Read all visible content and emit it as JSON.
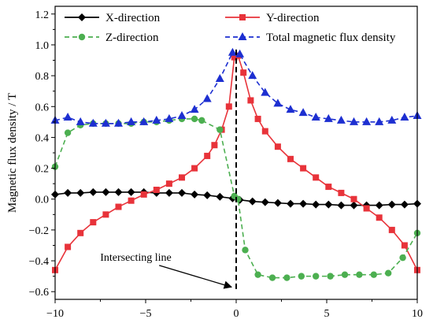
{
  "chart_data": {
    "type": "line",
    "title": "",
    "xlabel": "",
    "ylabel": "Magnetic flux density / T",
    "xlim": [
      -10,
      10
    ],
    "ylim": [
      -0.65,
      1.25
    ],
    "xticks": [
      -10,
      -5,
      0,
      5,
      10
    ],
    "xtick_labels": [
      "−10",
      "−5",
      "0",
      "5",
      "10"
    ],
    "yticks": [
      -0.6,
      -0.4,
      -0.2,
      0.0,
      0.2,
      0.4,
      0.6,
      0.8,
      1.0,
      1.2
    ],
    "ytick_labels": [
      "−0.6",
      "−0.4",
      "−0.2",
      "0.0",
      "0.2",
      "0.4",
      "0.6",
      "0.8",
      "1.0",
      "1.2"
    ],
    "grid": false,
    "legend_position": "top",
    "series": [
      {
        "name": "X-direction",
        "color": "#000000",
        "line_style": "solid",
        "marker": "diamond",
        "x": [
          -10,
          -9.3,
          -8.6,
          -7.9,
          -7.2,
          -6.5,
          -5.8,
          -5.1,
          -4.4,
          -3.7,
          -3.0,
          -2.3,
          -1.6,
          -0.9,
          -0.2,
          0.2,
          0.9,
          1.6,
          2.3,
          3.0,
          3.7,
          4.4,
          5.1,
          5.8,
          6.5,
          7.2,
          7.9,
          8.6,
          9.3,
          10
        ],
        "y": [
          0.03,
          0.04,
          0.04,
          0.045,
          0.045,
          0.045,
          0.045,
          0.045,
          0.04,
          0.04,
          0.04,
          0.03,
          0.025,
          0.015,
          0.005,
          -0.005,
          -0.015,
          -0.02,
          -0.025,
          -0.03,
          -0.03,
          -0.035,
          -0.035,
          -0.04,
          -0.04,
          -0.04,
          -0.04,
          -0.035,
          -0.035,
          -0.03
        ]
      },
      {
        "name": "Y-direction",
        "color": "#e8333a",
        "line_style": "solid",
        "marker": "square",
        "x": [
          -10,
          -9.3,
          -8.6,
          -7.9,
          -7.2,
          -6.5,
          -5.8,
          -5.1,
          -4.4,
          -3.7,
          -3.0,
          -2.3,
          -1.6,
          -1.2,
          -0.8,
          -0.4,
          -0.1,
          0.1,
          0.4,
          0.8,
          1.2,
          1.6,
          2.3,
          3.0,
          3.7,
          4.4,
          5.1,
          5.8,
          6.5,
          7.2,
          7.9,
          8.6,
          9.3,
          10
        ],
        "y": [
          -0.46,
          -0.31,
          -0.22,
          -0.15,
          -0.1,
          -0.05,
          -0.01,
          0.03,
          0.06,
          0.1,
          0.14,
          0.2,
          0.28,
          0.35,
          0.45,
          0.6,
          0.92,
          0.93,
          0.82,
          0.64,
          0.52,
          0.44,
          0.34,
          0.26,
          0.2,
          0.14,
          0.08,
          0.04,
          0.0,
          -0.06,
          -0.12,
          -0.2,
          -0.3,
          -0.46
        ]
      },
      {
        "name": "Z-direction",
        "color": "#4caf50",
        "line_style": "dashed",
        "marker": "circle",
        "x": [
          -10,
          -9.3,
          -8.6,
          -7.9,
          -7.2,
          -6.5,
          -5.8,
          -5.1,
          -4.4,
          -3.7,
          -3.0,
          -2.3,
          -1.9,
          -0.9,
          -0.1,
          0.1,
          0.5,
          1.2,
          2.0,
          2.8,
          3.6,
          4.4,
          5.2,
          6.0,
          6.8,
          7.6,
          8.4,
          9.2,
          10
        ],
        "y": [
          0.21,
          0.43,
          0.48,
          0.49,
          0.49,
          0.49,
          0.49,
          0.5,
          0.5,
          0.51,
          0.52,
          0.52,
          0.51,
          0.45,
          0.02,
          0.0,
          -0.33,
          -0.49,
          -0.51,
          -0.51,
          -0.5,
          -0.5,
          -0.5,
          -0.49,
          -0.49,
          -0.49,
          -0.48,
          -0.38,
          -0.22
        ]
      },
      {
        "name": "Total magnetic flux density",
        "color": "#1d2fd1",
        "line_style": "dashed",
        "marker": "triangle",
        "x": [
          -10,
          -9.3,
          -8.6,
          -7.9,
          -7.2,
          -6.5,
          -5.8,
          -5.1,
          -4.4,
          -3.7,
          -3.0,
          -2.3,
          -1.6,
          -0.9,
          -0.2,
          0.2,
          0.9,
          1.6,
          2.3,
          3.0,
          3.7,
          4.4,
          5.1,
          5.8,
          6.5,
          7.2,
          7.9,
          8.6,
          9.3,
          10
        ],
        "y": [
          0.51,
          0.53,
          0.5,
          0.49,
          0.49,
          0.49,
          0.5,
          0.5,
          0.51,
          0.52,
          0.54,
          0.58,
          0.65,
          0.78,
          0.95,
          0.94,
          0.8,
          0.69,
          0.62,
          0.58,
          0.56,
          0.53,
          0.52,
          0.51,
          0.5,
          0.5,
          0.5,
          0.51,
          0.53,
          0.54
        ]
      }
    ],
    "annotations": [
      {
        "text": "Intersecting line",
        "arrow_to_x": 0,
        "arrow_to_y": -0.57,
        "arrow_from_x": -3.6,
        "arrow_from_y": -0.44
      }
    ],
    "vertical_line": {
      "x": 0,
      "style": "dashed",
      "color": "#000000",
      "y_from": -0.6,
      "y_to": 0.97
    }
  }
}
